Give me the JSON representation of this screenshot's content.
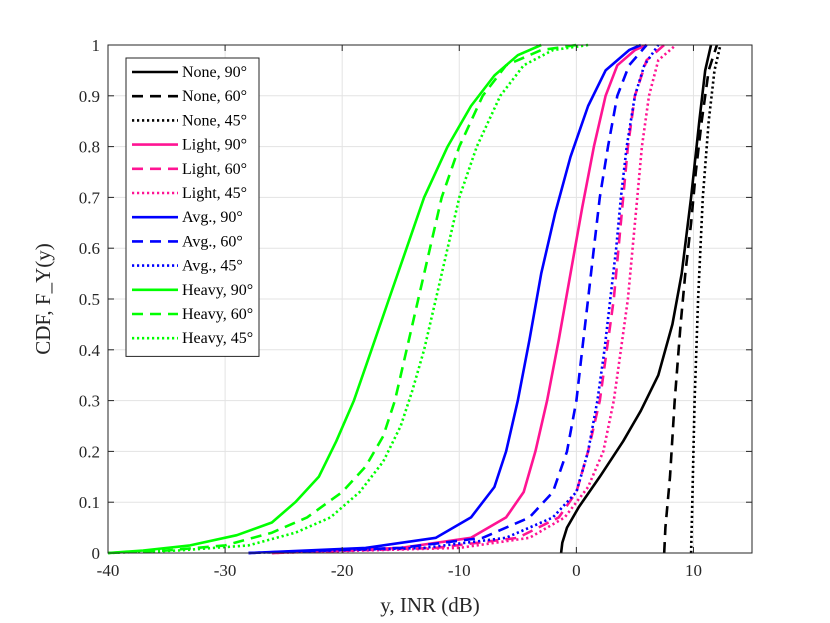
{
  "chart_data": {
    "type": "line",
    "title": "",
    "xlabel": "y, INR (dB)",
    "ylabel": "CDF, F_Y(y)",
    "xlim": [
      -40,
      15
    ],
    "ylim": [
      0,
      1
    ],
    "grid": true,
    "legend_position": "top-left",
    "xticks": [
      -40,
      -30,
      -20,
      -10,
      0,
      10
    ],
    "xtick_labels": [
      "-40",
      "-30",
      "-20",
      "-10",
      "0",
      "10"
    ],
    "yticks": [
      0,
      0.1,
      0.2,
      0.3,
      0.4,
      0.5,
      0.6,
      0.7,
      0.8,
      0.9,
      1
    ],
    "ytick_labels": [
      "0",
      "0.1",
      "0.2",
      "0.3",
      "0.4",
      "0.5",
      "0.6",
      "0.7",
      "0.8",
      "0.9",
      "1"
    ],
    "series": [
      {
        "name": "None, 90°",
        "color": "#000000",
        "dash": "solid",
        "points": [
          [
            -1.3,
            0
          ],
          [
            -1.2,
            0.02
          ],
          [
            -0.8,
            0.05
          ],
          [
            0.2,
            0.09
          ],
          [
            2.0,
            0.15
          ],
          [
            4.0,
            0.22
          ],
          [
            5.5,
            0.28
          ],
          [
            7.0,
            0.35
          ],
          [
            8.2,
            0.45
          ],
          [
            9.0,
            0.55
          ],
          [
            9.8,
            0.7
          ],
          [
            10.5,
            0.85
          ],
          [
            11.0,
            0.95
          ],
          [
            11.5,
            1.0
          ]
        ]
      },
      {
        "name": "None, 60°",
        "color": "#000000",
        "dash": "dashed",
        "points": [
          [
            7.5,
            0
          ],
          [
            7.6,
            0.05
          ],
          [
            8.0,
            0.15
          ],
          [
            8.4,
            0.3
          ],
          [
            8.9,
            0.45
          ],
          [
            9.3,
            0.55
          ],
          [
            9.8,
            0.65
          ],
          [
            10.2,
            0.75
          ],
          [
            10.7,
            0.85
          ],
          [
            11.3,
            0.95
          ],
          [
            12.0,
            1.0
          ]
        ]
      },
      {
        "name": "None, 45°",
        "color": "#000000",
        "dash": "dotted",
        "points": [
          [
            9.8,
            0
          ],
          [
            9.9,
            0.1
          ],
          [
            10.1,
            0.3
          ],
          [
            10.4,
            0.5
          ],
          [
            10.8,
            0.7
          ],
          [
            11.3,
            0.85
          ],
          [
            11.8,
            0.95
          ],
          [
            12.3,
            1.0
          ]
        ]
      },
      {
        "name": "Light, 90°",
        "color": "#ff1493",
        "dash": "solid",
        "points": [
          [
            -26,
            0
          ],
          [
            -15,
            0.01
          ],
          [
            -9,
            0.03
          ],
          [
            -6,
            0.07
          ],
          [
            -4.5,
            0.12
          ],
          [
            -3.5,
            0.2
          ],
          [
            -2.5,
            0.3
          ],
          [
            -1.5,
            0.42
          ],
          [
            -0.5,
            0.55
          ],
          [
            0.5,
            0.68
          ],
          [
            1.5,
            0.8
          ],
          [
            2.5,
            0.9
          ],
          [
            3.5,
            0.96
          ],
          [
            5,
            0.99
          ],
          [
            6,
            1.0
          ]
        ]
      },
      {
        "name": "Light, 60°",
        "color": "#ff1493",
        "dash": "dashed",
        "points": [
          [
            -26,
            0
          ],
          [
            -12,
            0.01
          ],
          [
            -5,
            0.03
          ],
          [
            -1.5,
            0.07
          ],
          [
            0,
            0.12
          ],
          [
            1.0,
            0.2
          ],
          [
            2.0,
            0.3
          ],
          [
            2.6,
            0.4
          ],
          [
            3.2,
            0.5
          ],
          [
            3.6,
            0.6
          ],
          [
            4.0,
            0.7
          ],
          [
            4.4,
            0.8
          ],
          [
            5.0,
            0.9
          ],
          [
            6.0,
            0.97
          ],
          [
            7.5,
            1.0
          ]
        ]
      },
      {
        "name": "Light, 45°",
        "color": "#ff1493",
        "dash": "dotted",
        "points": [
          [
            -26,
            0
          ],
          [
            -10,
            0.01
          ],
          [
            -4,
            0.03
          ],
          [
            -1,
            0.07
          ],
          [
            1,
            0.13
          ],
          [
            2.3,
            0.2
          ],
          [
            3.2,
            0.3
          ],
          [
            3.8,
            0.4
          ],
          [
            4.4,
            0.5
          ],
          [
            4.8,
            0.6
          ],
          [
            5.2,
            0.7
          ],
          [
            5.6,
            0.8
          ],
          [
            6.2,
            0.9
          ],
          [
            7.0,
            0.97
          ],
          [
            8.5,
            1.0
          ]
        ]
      },
      {
        "name": "Avg., 90°",
        "color": "#0000ff",
        "dash": "solid",
        "points": [
          [
            -28,
            0
          ],
          [
            -18,
            0.01
          ],
          [
            -12,
            0.03
          ],
          [
            -9,
            0.07
          ],
          [
            -7,
            0.13
          ],
          [
            -6,
            0.2
          ],
          [
            -5,
            0.3
          ],
          [
            -4,
            0.42
          ],
          [
            -3,
            0.55
          ],
          [
            -1.8,
            0.67
          ],
          [
            -0.5,
            0.78
          ],
          [
            1.0,
            0.88
          ],
          [
            2.5,
            0.95
          ],
          [
            4.5,
            0.99
          ],
          [
            5.5,
            1.0
          ]
        ]
      },
      {
        "name": "Avg., 60°",
        "color": "#0000ff",
        "dash": "dashed",
        "points": [
          [
            -28,
            0
          ],
          [
            -15,
            0.01
          ],
          [
            -8,
            0.03
          ],
          [
            -4,
            0.07
          ],
          [
            -2,
            0.12
          ],
          [
            -0.8,
            0.2
          ],
          [
            0,
            0.3
          ],
          [
            0.5,
            0.4
          ],
          [
            1.0,
            0.5
          ],
          [
            1.5,
            0.6
          ],
          [
            2.0,
            0.7
          ],
          [
            2.7,
            0.8
          ],
          [
            3.5,
            0.9
          ],
          [
            4.5,
            0.96
          ],
          [
            6.0,
            1.0
          ]
        ]
      },
      {
        "name": "Avg., 45°",
        "color": "#0000ff",
        "dash": "dotted",
        "points": [
          [
            -28,
            0
          ],
          [
            -13,
            0.01
          ],
          [
            -6,
            0.03
          ],
          [
            -2,
            0.07
          ],
          [
            0,
            0.12
          ],
          [
            1.0,
            0.2
          ],
          [
            1.8,
            0.3
          ],
          [
            2.4,
            0.4
          ],
          [
            2.9,
            0.5
          ],
          [
            3.4,
            0.6
          ],
          [
            3.8,
            0.7
          ],
          [
            4.3,
            0.8
          ],
          [
            5.0,
            0.9
          ],
          [
            5.8,
            0.96
          ],
          [
            7.0,
            1.0
          ]
        ]
      },
      {
        "name": "Heavy, 90°",
        "color": "#00ff00",
        "dash": "solid",
        "points": [
          [
            -40,
            0
          ],
          [
            -37,
            0.005
          ],
          [
            -33,
            0.015
          ],
          [
            -29,
            0.035
          ],
          [
            -26,
            0.06
          ],
          [
            -24,
            0.1
          ],
          [
            -22,
            0.15
          ],
          [
            -20.5,
            0.22
          ],
          [
            -19,
            0.3
          ],
          [
            -17.5,
            0.4
          ],
          [
            -16,
            0.5
          ],
          [
            -14.5,
            0.6
          ],
          [
            -13,
            0.7
          ],
          [
            -11,
            0.8
          ],
          [
            -9,
            0.88
          ],
          [
            -7,
            0.94
          ],
          [
            -5,
            0.98
          ],
          [
            -3,
            1.0
          ]
        ]
      },
      {
        "name": "Heavy, 60°",
        "color": "#00ff00",
        "dash": "dashed",
        "points": [
          [
            -40,
            0
          ],
          [
            -35,
            0.005
          ],
          [
            -30,
            0.015
          ],
          [
            -26,
            0.04
          ],
          [
            -23,
            0.07
          ],
          [
            -20,
            0.12
          ],
          [
            -18,
            0.17
          ],
          [
            -16.5,
            0.23
          ],
          [
            -15.5,
            0.3
          ],
          [
            -14.5,
            0.4
          ],
          [
            -13.5,
            0.5
          ],
          [
            -12.5,
            0.6
          ],
          [
            -11.5,
            0.7
          ],
          [
            -10,
            0.8
          ],
          [
            -8,
            0.9
          ],
          [
            -6,
            0.96
          ],
          [
            -3,
            0.99
          ],
          [
            0,
            1.0
          ]
        ]
      },
      {
        "name": "Heavy, 45°",
        "color": "#00ff00",
        "dash": "dotted",
        "points": [
          [
            -40,
            0
          ],
          [
            -34,
            0.005
          ],
          [
            -28,
            0.015
          ],
          [
            -24,
            0.04
          ],
          [
            -21,
            0.07
          ],
          [
            -18.5,
            0.12
          ],
          [
            -16.5,
            0.18
          ],
          [
            -15,
            0.25
          ],
          [
            -14,
            0.32
          ],
          [
            -13,
            0.4
          ],
          [
            -12,
            0.5
          ],
          [
            -11,
            0.6
          ],
          [
            -10,
            0.7
          ],
          [
            -8.5,
            0.8
          ],
          [
            -6.5,
            0.9
          ],
          [
            -4.5,
            0.96
          ],
          [
            -2,
            0.99
          ],
          [
            1,
            1.0
          ]
        ]
      }
    ]
  }
}
